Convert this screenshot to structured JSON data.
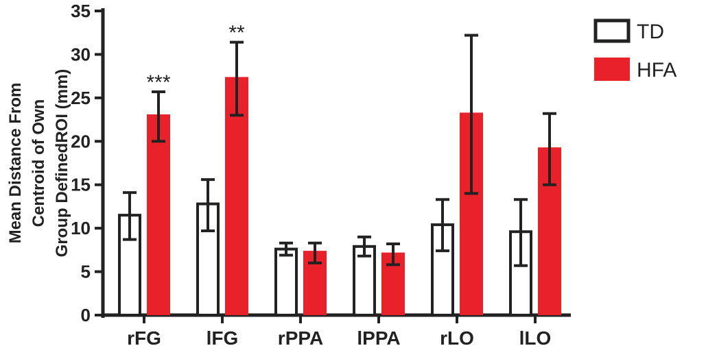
{
  "chart_data": {
    "type": "bar",
    "title": "",
    "ylabel_lines": [
      "Mean Distance From",
      "Centroid of Own",
      "Group DefinedROI (mm)"
    ],
    "xlabel": "",
    "ylim": [
      0,
      35
    ],
    "yticks": [
      0,
      5,
      10,
      15,
      20,
      25,
      30,
      35
    ],
    "categories": [
      "rFG",
      "lFG",
      "rPPA",
      "lPPA",
      "rLO",
      "lLO"
    ],
    "legend_position": "top-right",
    "series": [
      {
        "name": "TD",
        "fill": "#ffffff",
        "stroke": "#222222",
        "values": [
          11.5,
          12.8,
          7.6,
          7.9,
          10.4,
          9.6
        ],
        "error_low": [
          8.7,
          9.7,
          6.9,
          6.8,
          7.4,
          5.7
        ],
        "error_high": [
          14.1,
          15.6,
          8.3,
          9.0,
          13.3,
          13.3
        ]
      },
      {
        "name": "HFA",
        "fill": "#e8212a",
        "stroke": "#e8212a",
        "values": [
          23.1,
          27.4,
          7.4,
          7.2,
          23.3,
          19.3
        ],
        "error_low": [
          20.0,
          23.0,
          6.0,
          5.8,
          14.0,
          15.0
        ],
        "error_high": [
          25.7,
          31.4,
          8.3,
          8.2,
          32.2,
          23.2
        ]
      }
    ],
    "annotations": [
      {
        "category_index": 0,
        "series_index": 1,
        "text": "***"
      },
      {
        "category_index": 1,
        "series_index": 1,
        "text": "**"
      }
    ]
  }
}
